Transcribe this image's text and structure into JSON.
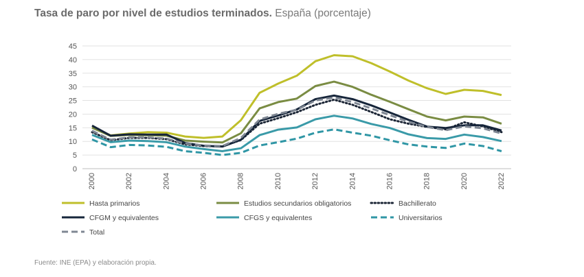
{
  "title": "Tasa de paro por nivel de estudios terminados.",
  "subtitle": "España (porcentaje)",
  "source": "Fuente: INE (EPA) y elaboración propia.",
  "chart_data": {
    "type": "line",
    "title": "Tasa de paro por nivel de estudios terminados.",
    "subtitle": "España (porcentaje)",
    "xlabel": "",
    "ylabel": "",
    "ylim": [
      0,
      45
    ],
    "yticks": [
      "0",
      "5",
      "10",
      "15",
      "20",
      "25",
      "30",
      "35",
      "40",
      "45"
    ],
    "xticks": [
      "2000",
      "2002",
      "2004",
      "2006",
      "2008",
      "2010",
      "2012",
      "2014",
      "2016",
      "2018",
      "2020",
      "2022"
    ],
    "x": [
      2000,
      2001,
      2002,
      2003,
      2004,
      2005,
      2006,
      2007,
      2008,
      2009,
      2010,
      2011,
      2012,
      2013,
      2014,
      2015,
      2016,
      2017,
      2018,
      2019,
      2020,
      2021,
      2022
    ],
    "grid": "horizontal",
    "legend_position": "bottom",
    "series": [
      {
        "name": "Hasta primarios",
        "color": "#bfbf2a",
        "style": "solid",
        "width": 3,
        "values": [
          15.2,
          12.2,
          12.9,
          13.4,
          13.2,
          11.8,
          11.3,
          11.8,
          17.8,
          27.8,
          31.2,
          34.1,
          39.4,
          41.6,
          41.2,
          38.7,
          35.6,
          32.3,
          29.5,
          27.4,
          28.9,
          28.5,
          27.0
        ]
      },
      {
        "name": "Estudios secundarios obligatorios",
        "color": "#7a8c43",
        "style": "solid",
        "width": 3,
        "values": [
          15.0,
          12.0,
          12.4,
          12.3,
          12.1,
          10.3,
          9.9,
          9.6,
          13.0,
          22.1,
          24.4,
          25.7,
          30.3,
          31.9,
          30.0,
          27.1,
          24.5,
          21.8,
          19.1,
          17.7,
          19.1,
          18.8,
          16.5
        ]
      },
      {
        "name": "Bachillerato",
        "color": "#1b2535",
        "style": "dotted",
        "width": 3,
        "values": [
          13.4,
          10.4,
          11.3,
          11.3,
          10.8,
          8.9,
          8.3,
          8.2,
          10.5,
          16.5,
          18.5,
          20.7,
          23.4,
          25.3,
          23.4,
          20.8,
          18.1,
          16.5,
          15.3,
          14.4,
          17.0,
          15.5,
          13.4
        ]
      },
      {
        "name": "CFGM y equivalentes",
        "color": "#16253a",
        "style": "solid",
        "width": 3,
        "values": [
          15.8,
          12.1,
          12.6,
          12.5,
          12.5,
          9.4,
          8.4,
          8.1,
          10.6,
          17.5,
          19.5,
          21.7,
          25.5,
          26.8,
          25.5,
          23.2,
          20.6,
          17.9,
          15.4,
          14.9,
          15.9,
          15.9,
          14.0
        ]
      },
      {
        "name": "CFGS y equivalentes",
        "color": "#3a9aa8",
        "style": "solid",
        "width": 3,
        "values": [
          12.4,
          9.7,
          10.3,
          10.1,
          9.7,
          8.1,
          7.2,
          6.4,
          7.5,
          12.3,
          14.3,
          15.1,
          18.1,
          19.4,
          18.4,
          16.4,
          14.9,
          12.6,
          11.2,
          10.9,
          12.5,
          11.6,
          10.1
        ]
      },
      {
        "name": "Universitarios",
        "color": "#2f96a5",
        "style": "dashed",
        "width": 3,
        "values": [
          10.7,
          7.9,
          8.7,
          8.5,
          8.0,
          6.4,
          5.8,
          5.0,
          5.8,
          8.5,
          9.7,
          11.0,
          13.2,
          14.4,
          13.2,
          12.1,
          10.4,
          8.9,
          8.1,
          7.6,
          9.2,
          8.3,
          6.4
        ]
      },
      {
        "name": "Total",
        "color": "#7f8793",
        "style": "dashed",
        "width": 3,
        "values": [
          13.9,
          10.6,
          11.5,
          11.5,
          11.0,
          9.2,
          8.5,
          8.3,
          11.3,
          18.0,
          20.1,
          21.6,
          25.0,
          26.1,
          24.4,
          22.1,
          19.6,
          17.2,
          15.3,
          14.1,
          15.5,
          14.8,
          12.9
        ]
      }
    ]
  }
}
